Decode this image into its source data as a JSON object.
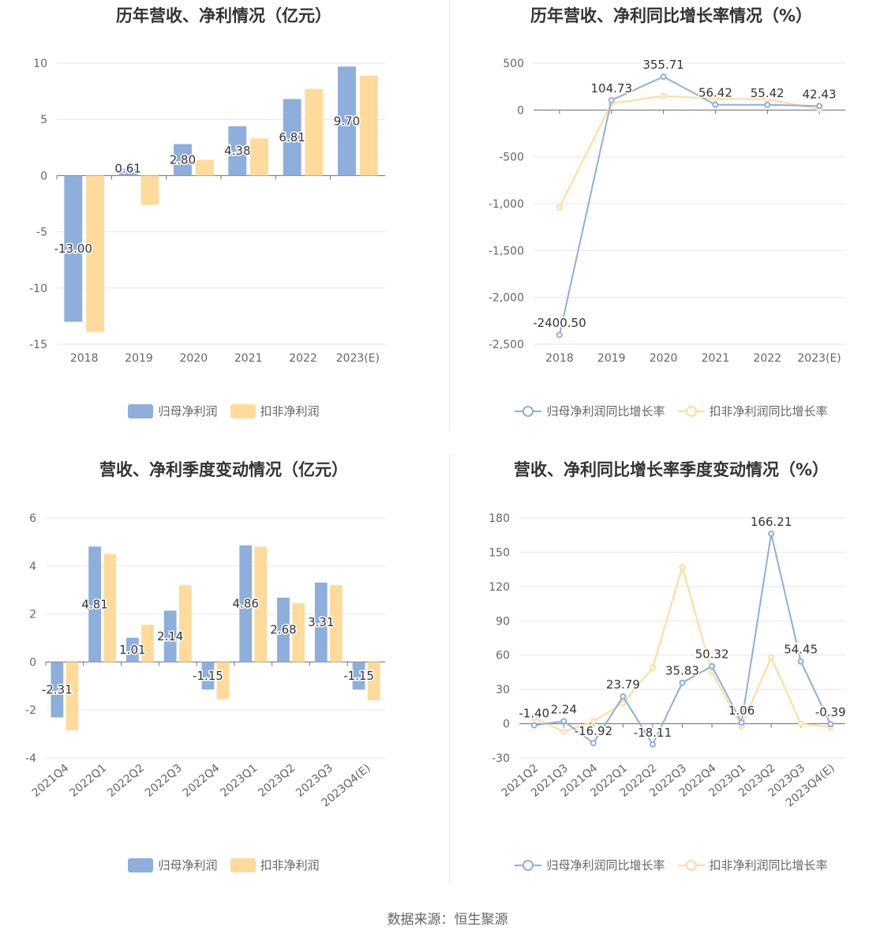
{
  "colors": {
    "primary": "#8eaedb",
    "secondary": "#fedb9b",
    "grid": "#e4e6ee",
    "axis": "#666666"
  },
  "source_label": "数据来源：恒生聚源",
  "chart_data": [
    {
      "type": "bar",
      "title": "历年营收、净利情况（亿元）",
      "categories": [
        "2018",
        "2019",
        "2020",
        "2021",
        "2022",
        "2023(E)"
      ],
      "ylim": [
        -15,
        10
      ],
      "yticks": [
        10,
        5,
        0,
        -5,
        -10,
        -15
      ],
      "grid": true,
      "legend_position": "bottom",
      "series": [
        {
          "name": "归母净利润",
          "values": [
            -13.0,
            0.61,
            2.8,
            4.38,
            6.81,
            9.7
          ],
          "labels": [
            "-13.00",
            "0.61",
            "2.80",
            "4.38",
            "6.81",
            "9.70"
          ]
        },
        {
          "name": "扣非净利润",
          "values": [
            -13.9,
            -2.6,
            1.4,
            3.3,
            7.7,
            8.9
          ]
        }
      ]
    },
    {
      "type": "line",
      "title": "历年营收、净利同比增长率情况（%）",
      "categories": [
        "2018",
        "2019",
        "2020",
        "2021",
        "2022",
        "2023(E)"
      ],
      "ylim": [
        -2500,
        500
      ],
      "yticks": [
        500,
        0,
        -500,
        -1000,
        -1500,
        -2000,
        -2500
      ],
      "ytick_labels": [
        "500",
        "0",
        "-500",
        "-1,000",
        "-1,500",
        "-2,000",
        "-2,500"
      ],
      "grid": true,
      "legend_position": "bottom",
      "series": [
        {
          "name": "归母净利润同比增长率",
          "values": [
            -2400.5,
            104.73,
            355.71,
            56.42,
            55.42,
            42.43
          ],
          "labels": [
            "-2400.50",
            "104.73",
            "355.71",
            "56.42",
            "55.42",
            "42.43"
          ]
        },
        {
          "name": "扣非净利润同比增长率",
          "values": [
            -1040,
            70,
            150,
            120,
            115,
            10
          ]
        }
      ]
    },
    {
      "type": "bar",
      "title": "营收、净利季度变动情况（亿元）",
      "categories": [
        "2021Q4",
        "2022Q1",
        "2022Q2",
        "2022Q3",
        "2022Q4",
        "2023Q1",
        "2023Q2",
        "2023Q3",
        "2023Q4(E)"
      ],
      "ylim": [
        -4,
        6
      ],
      "yticks": [
        6,
        4,
        2,
        0,
        -2,
        -4
      ],
      "grid": true,
      "legend_position": "bottom",
      "series": [
        {
          "name": "归母净利润",
          "values": [
            -2.31,
            4.81,
            1.01,
            2.14,
            -1.15,
            4.86,
            2.68,
            3.31,
            -1.15
          ],
          "labels": [
            "-2.31",
            "4.81",
            "1.01",
            "2.14",
            "-1.15",
            "4.86",
            "2.68",
            "3.31",
            "-1.15"
          ]
        },
        {
          "name": "扣非净利润",
          "values": [
            -2.85,
            4.5,
            1.55,
            3.2,
            -1.55,
            4.8,
            2.45,
            3.2,
            -1.6
          ]
        }
      ]
    },
    {
      "type": "line",
      "title": "营收、净利同比增长率季度变动情况（%）",
      "categories": [
        "2021Q2",
        "2021Q3",
        "2021Q4",
        "2022Q1",
        "2022Q2",
        "2022Q3",
        "2022Q4",
        "2023Q1",
        "2023Q2",
        "2023Q3",
        "2023Q4(E)"
      ],
      "ylim": [
        -30,
        180
      ],
      "yticks": [
        180,
        150,
        120,
        90,
        60,
        30,
        0,
        -30
      ],
      "grid": true,
      "legend_position": "bottom",
      "series": [
        {
          "name": "归母净利润同比增长率",
          "values": [
            -1.4,
            2.24,
            -16.92,
            23.79,
            -18.11,
            35.83,
            50.32,
            1.06,
            166.21,
            54.45,
            -0.39
          ],
          "labels": [
            "-1.40",
            "2.24",
            "-16.92",
            "23.79",
            "-18.11",
            "35.83",
            "50.32",
            "1.06",
            "166.21",
            "54.45",
            "-0.39"
          ]
        },
        {
          "name": "扣非净利润同比增长率",
          "values": [
            5,
            -7,
            2,
            18,
            49,
            137,
            45,
            -2,
            58,
            0,
            -3
          ]
        }
      ]
    }
  ]
}
